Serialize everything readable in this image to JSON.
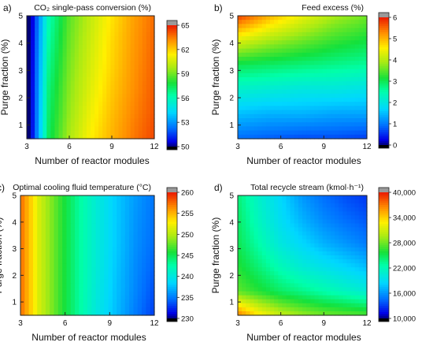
{
  "chart_data": [
    {
      "type": "heatmap",
      "panel_label": "a)",
      "title": "CO₂ single-pass conversion (%)",
      "xlabel": "Number of reactor modules",
      "ylabel": "Purge fraction (%)",
      "xlim": [
        3,
        12
      ],
      "ylim": [
        0.5,
        5
      ],
      "xticks": [
        "3",
        "6",
        "9",
        "12"
      ],
      "yticks": [
        "1",
        "2",
        "3",
        "4",
        "5"
      ],
      "colorbar": {
        "min": 50,
        "max": 65,
        "ticks": [
          "50",
          "53",
          "56",
          "59",
          "62",
          "65"
        ]
      },
      "grid": [
        [
          48.5,
          56.0,
          58.7,
          60.2,
          61.6,
          62.8,
          63.7
        ],
        [
          48.5,
          56.3,
          58.9,
          60.4,
          61.8,
          62.9,
          63.8
        ],
        [
          48.5,
          56.6,
          59.1,
          60.6,
          61.9,
          63.0,
          63.9
        ],
        [
          48.5,
          56.9,
          59.3,
          60.8,
          62.1,
          63.1,
          64.0
        ],
        [
          48.5,
          57.1,
          59.5,
          61.1,
          62.3,
          63.3,
          64.1
        ],
        [
          48.5,
          57.3,
          59.8,
          61.4,
          62.5,
          63.5,
          64.3
        ]
      ]
    },
    {
      "type": "heatmap",
      "panel_label": "b)",
      "title": "Feed excess (%)",
      "xlabel": "Number of reactor modules",
      "ylabel": "Purge fraction (%)",
      "xlim": [
        3,
        12
      ],
      "ylim": [
        0.5,
        5
      ],
      "xticks": [
        "3",
        "6",
        "9",
        "12"
      ],
      "yticks": [
        "1",
        "2",
        "3",
        "4",
        "5"
      ],
      "colorbar": {
        "min": 0,
        "max": 6,
        "ticks": [
          "0",
          "1",
          "2",
          "3",
          "4",
          "5",
          "6"
        ]
      },
      "grid": [
        [
          5.8,
          5.0,
          4.4,
          3.9,
          3.6
        ],
        [
          4.3,
          3.9,
          3.6,
          3.3,
          3.1
        ],
        [
          3.0,
          2.9,
          2.8,
          2.7,
          2.6
        ],
        [
          2.2,
          2.1,
          2.0,
          2.0,
          1.9
        ],
        [
          1.5,
          1.4,
          1.4,
          1.3,
          1.3
        ],
        [
          0.9,
          0.8,
          0.7,
          0.7,
          0.6
        ]
      ]
    },
    {
      "type": "heatmap",
      "panel_label": "c)",
      "title": "Optimal cooling fluid temperature (°C)",
      "xlabel": "Number of reactor modules",
      "ylabel": "Purge fraction (%)",
      "xlim": [
        3,
        12
      ],
      "ylim": [
        0.5,
        5
      ],
      "xticks": [
        "3",
        "6",
        "9",
        "12"
      ],
      "yticks": [
        "1",
        "2",
        "3",
        "4",
        "5"
      ],
      "colorbar": {
        "min": 230,
        "max": 260,
        "ticks": [
          "230",
          "235",
          "240",
          "245",
          "250",
          "255",
          "260"
        ]
      },
      "grid": [
        [
          257.5,
          251.0,
          246.8,
          243.2,
          240.4,
          238.0,
          236.2,
          234.8
        ],
        [
          257.5,
          251.0,
          246.8,
          243.2,
          240.4,
          238.0,
          236.0,
          234.6
        ],
        [
          257.5,
          251.0,
          246.8,
          243.2,
          240.4,
          238.0,
          235.8,
          234.4
        ],
        [
          257.5,
          251.0,
          246.8,
          243.2,
          240.4,
          237.8,
          235.6,
          234.0
        ],
        [
          257.5,
          251.0,
          246.8,
          243.2,
          240.2,
          237.6,
          235.4,
          233.5
        ],
        [
          257.5,
          251.0,
          246.8,
          243.2,
          240.0,
          237.4,
          235.0,
          233.0
        ]
      ]
    },
    {
      "type": "heatmap",
      "panel_label": "d)",
      "title": "Total recycle stream (kmol·h⁻¹)",
      "xlabel": "Number of reactor modules",
      "ylabel": "Purge fraction (%)",
      "xlim": [
        3,
        12
      ],
      "ylim": [
        0.5,
        5
      ],
      "xticks": [
        "3",
        "6",
        "9",
        "12"
      ],
      "yticks": [
        "1",
        "2",
        "3",
        "4",
        "5"
      ],
      "colorbar": {
        "min": 10000,
        "max": 40000,
        "ticks": [
          "10,000",
          "16,000",
          "22,000",
          "28,000",
          "34,000",
          "40,000"
        ]
      },
      "grid": [
        [
          24000,
          21000,
          18500,
          16000,
          14500,
          13500,
          12800
        ],
        [
          24500,
          21500,
          19000,
          17000,
          15500,
          14500,
          13800
        ],
        [
          25000,
          22500,
          20000,
          18500,
          17000,
          16000,
          15000
        ],
        [
          26000,
          24000,
          22000,
          20500,
          19500,
          18500,
          17500
        ],
        [
          27500,
          26000,
          24500,
          23500,
          22500,
          21500,
          20500
        ],
        [
          37000,
          33000,
          30500,
          29000,
          28000,
          27500,
          27000
        ]
      ]
    }
  ]
}
